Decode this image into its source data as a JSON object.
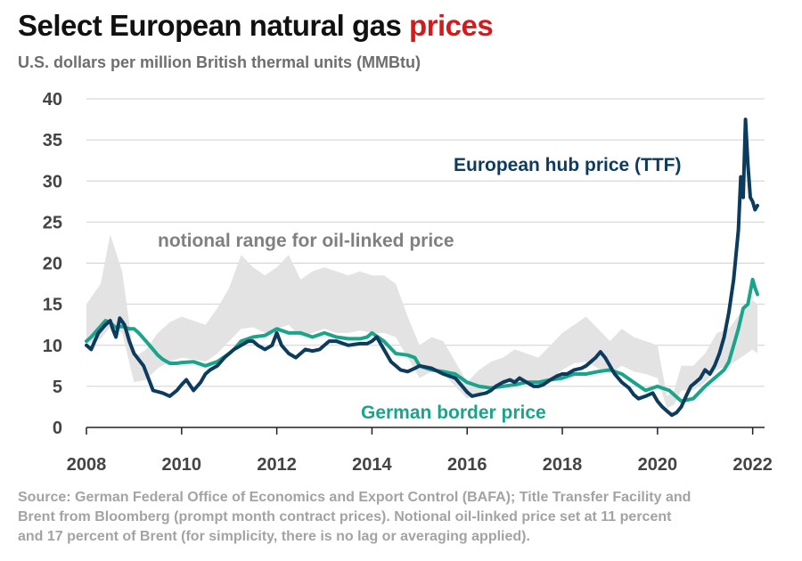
{
  "header": {
    "title_main": "Select European natural gas ",
    "title_accent": "prices",
    "subtitle": "U.S. dollars per million British thermal units (MMBtu)"
  },
  "source": {
    "lines": [
      "Source: German Federal Office of Economics and Export Control (BAFA); Title Transfer Facility and",
      "Brent from Bloomberg (prompt month contract prices). Notional oil-linked price set at 11 percent",
      "and 17 percent of Brent (for simplicity, there is no lag or averaging applied)."
    ]
  },
  "colors": {
    "ttf": "#0d3b5e",
    "german": "#1aa58a",
    "range": "#e3e3e3",
    "annotation_gray": "#808080",
    "title_accent": "#d7191c",
    "grid": "#d0d0d0",
    "axis_text": "#444444"
  },
  "chart_data": {
    "type": "line",
    "xlim": [
      2008,
      2022.25
    ],
    "ylim": [
      0,
      40
    ],
    "x_ticks": [
      2008,
      2010,
      2012,
      2014,
      2016,
      2018,
      2020,
      2022
    ],
    "x_tick_labels": [
      "2008",
      "2010",
      "2012",
      "2014",
      "2016",
      "2018",
      "2020",
      "2022"
    ],
    "y_ticks": [
      0,
      5,
      10,
      15,
      20,
      25,
      30,
      35,
      40
    ],
    "y_tick_labels": [
      "0",
      "5",
      "10",
      "15",
      "20",
      "25",
      "30",
      "35",
      "40"
    ],
    "grid": "horizontal",
    "annotations": {
      "ttf_label": "European hub price (TTF)",
      "german_label": "German border price",
      "range_label": "notional range for oil-linked price"
    },
    "band": {
      "name": "notional range for oil-linked price",
      "x": [
        2008.0,
        2008.3,
        2008.5,
        2008.75,
        2009.0,
        2009.25,
        2009.5,
        2009.75,
        2010.0,
        2010.25,
        2010.5,
        2010.75,
        2011.0,
        2011.25,
        2011.5,
        2011.75,
        2012.0,
        2012.25,
        2012.5,
        2012.75,
        2013.0,
        2013.25,
        2013.5,
        2013.75,
        2014.0,
        2014.25,
        2014.5,
        2014.75,
        2015.0,
        2015.25,
        2015.5,
        2015.75,
        2016.0,
        2016.25,
        2016.5,
        2016.75,
        2017.0,
        2017.25,
        2017.5,
        2017.75,
        2018.0,
        2018.25,
        2018.5,
        2018.75,
        2019.0,
        2019.25,
        2019.5,
        2019.75,
        2020.0,
        2020.2,
        2020.35,
        2020.5,
        2020.75,
        2021.0,
        2021.25,
        2021.5,
        2021.75,
        2022.0,
        2022.1
      ],
      "lower": [
        10,
        10.8,
        12.2,
        11.5,
        5.5,
        5.8,
        7.2,
        8.0,
        8.5,
        8.3,
        8.0,
        9.0,
        10.5,
        12.0,
        12.2,
        11.5,
        12.0,
        12.5,
        11.0,
        11.5,
        12.0,
        11.5,
        11.5,
        11.8,
        11.5,
        11.5,
        11.0,
        8.5,
        6.0,
        6.8,
        6.5,
        5.0,
        3.5,
        4.2,
        5.0,
        5.2,
        5.8,
        5.6,
        5.2,
        6.0,
        7.0,
        7.8,
        8.0,
        7.2,
        6.5,
        7.5,
        6.8,
        6.5,
        6.0,
        2.3,
        2.8,
        4.5,
        4.5,
        5.5,
        7.0,
        7.5,
        8.5,
        9.5,
        9.0
      ],
      "upper": [
        15.0,
        17.5,
        23.5,
        19.0,
        8.5,
        9.5,
        11.5,
        12.8,
        13.5,
        13.0,
        12.5,
        14.5,
        17.0,
        21.0,
        19.5,
        18.5,
        19.5,
        21.0,
        18.0,
        19.0,
        19.5,
        19.0,
        18.5,
        19.0,
        18.5,
        18.5,
        17.5,
        13.5,
        10.0,
        11.0,
        10.5,
        8.0,
        5.5,
        7.0,
        8.0,
        8.5,
        9.5,
        9.0,
        8.5,
        10.0,
        11.5,
        12.5,
        13.5,
        12.0,
        10.5,
        12.0,
        11.0,
        10.5,
        10.0,
        3.8,
        4.5,
        7.5,
        7.5,
        9.0,
        11.5,
        12.0,
        14.0,
        15.5,
        15.0
      ]
    },
    "series": [
      {
        "name": "European hub price (TTF)",
        "x": [
          2008.0,
          2008.1,
          2008.25,
          2008.4,
          2008.5,
          2008.55,
          2008.62,
          2008.7,
          2008.8,
          2008.9,
          2009.0,
          2009.2,
          2009.4,
          2009.6,
          2009.75,
          2009.9,
          2010.0,
          2010.1,
          2010.25,
          2010.4,
          2010.5,
          2010.6,
          2010.75,
          2010.9,
          2011.0,
          2011.1,
          2011.25,
          2011.4,
          2011.5,
          2011.6,
          2011.75,
          2011.9,
          2012.0,
          2012.1,
          2012.25,
          2012.4,
          2012.5,
          2012.6,
          2012.75,
          2012.9,
          2013.0,
          2013.1,
          2013.25,
          2013.5,
          2013.75,
          2013.9,
          2014.0,
          2014.1,
          2014.25,
          2014.4,
          2014.5,
          2014.6,
          2014.75,
          2014.9,
          2015.0,
          2015.25,
          2015.5,
          2015.75,
          2015.9,
          2016.0,
          2016.1,
          2016.25,
          2016.4,
          2016.5,
          2016.6,
          2016.75,
          2016.9,
          2017.0,
          2017.1,
          2017.25,
          2017.4,
          2017.5,
          2017.6,
          2017.75,
          2017.9,
          2018.0,
          2018.1,
          2018.25,
          2018.4,
          2018.5,
          2018.6,
          2018.7,
          2018.8,
          2018.9,
          2019.0,
          2019.1,
          2019.25,
          2019.4,
          2019.5,
          2019.6,
          2019.75,
          2019.9,
          2020.0,
          2020.1,
          2020.2,
          2020.3,
          2020.4,
          2020.5,
          2020.6,
          2020.7,
          2020.8,
          2020.9,
          2021.0,
          2021.1,
          2021.2,
          2021.3,
          2021.4,
          2021.5,
          2021.6,
          2021.7,
          2021.75,
          2021.8,
          2021.85,
          2021.9,
          2021.95,
          2022.0,
          2022.05,
          2022.1
        ],
        "y": [
          10.0,
          9.5,
          11.5,
          12.5,
          13.0,
          12.0,
          11.0,
          13.3,
          12.5,
          10.5,
          9.0,
          7.5,
          4.5,
          4.2,
          3.8,
          4.5,
          5.2,
          5.8,
          4.5,
          5.5,
          6.5,
          7.0,
          7.5,
          8.5,
          9.0,
          9.5,
          10.0,
          10.5,
          10.5,
          10.0,
          9.5,
          10.0,
          11.5,
          10.0,
          9.0,
          8.5,
          9.0,
          9.5,
          9.3,
          9.5,
          10.0,
          10.5,
          10.5,
          10.0,
          10.2,
          10.2,
          10.5,
          11.0,
          9.5,
          8.0,
          7.5,
          7.0,
          6.8,
          7.2,
          7.5,
          7.2,
          6.5,
          6.0,
          5.0,
          4.3,
          3.8,
          4.0,
          4.2,
          4.5,
          5.0,
          5.5,
          5.8,
          5.5,
          6.0,
          5.5,
          5.0,
          5.0,
          5.2,
          5.8,
          6.3,
          6.5,
          6.5,
          7.0,
          7.2,
          7.5,
          8.0,
          8.5,
          9.2,
          8.5,
          7.5,
          6.5,
          5.5,
          4.8,
          4.0,
          3.5,
          3.8,
          4.2,
          3.2,
          2.5,
          2.0,
          1.5,
          1.8,
          2.5,
          3.8,
          5.0,
          5.5,
          6.0,
          7.0,
          6.5,
          7.5,
          9.0,
          11.0,
          14.0,
          18.0,
          24.0,
          30.5,
          28.0,
          37.5,
          32.0,
          28.0,
          27.5,
          26.5,
          27.0
        ]
      },
      {
        "name": "German border price",
        "x": [
          2008.0,
          2008.1,
          2008.25,
          2008.4,
          2008.5,
          2008.6,
          2008.75,
          2008.9,
          2009.0,
          2009.1,
          2009.25,
          2009.4,
          2009.5,
          2009.6,
          2009.75,
          2009.9,
          2010.0,
          2010.25,
          2010.5,
          2010.75,
          2011.0,
          2011.1,
          2011.25,
          2011.5,
          2011.75,
          2012.0,
          2012.25,
          2012.5,
          2012.75,
          2013.0,
          2013.25,
          2013.5,
          2013.75,
          2013.9,
          2014.0,
          2014.25,
          2014.5,
          2014.75,
          2014.9,
          2015.0,
          2015.25,
          2015.5,
          2015.75,
          2016.0,
          2016.25,
          2016.5,
          2016.75,
          2017.0,
          2017.25,
          2017.5,
          2017.75,
          2018.0,
          2018.25,
          2018.5,
          2018.75,
          2019.0,
          2019.25,
          2019.5,
          2019.75,
          2020.0,
          2020.25,
          2020.5,
          2020.75,
          2021.0,
          2021.2,
          2021.4,
          2021.5,
          2021.6,
          2021.7,
          2021.8,
          2021.9,
          2021.95,
          2022.0,
          2022.05,
          2022.1
        ],
        "y": [
          10.5,
          11.0,
          12.0,
          13.0,
          12.8,
          12.2,
          12.3,
          12.0,
          12.0,
          11.5,
          10.5,
          9.5,
          8.8,
          8.3,
          7.8,
          7.8,
          7.9,
          8.0,
          7.5,
          8.0,
          9.0,
          9.5,
          10.5,
          11.0,
          11.2,
          12.0,
          11.5,
          11.5,
          11.0,
          11.5,
          11.0,
          10.8,
          10.8,
          11.0,
          11.5,
          10.5,
          9.0,
          8.8,
          8.5,
          7.5,
          7.0,
          6.8,
          6.5,
          5.5,
          5.0,
          4.8,
          5.0,
          5.2,
          5.5,
          5.5,
          5.8,
          6.0,
          6.5,
          6.5,
          6.8,
          7.0,
          6.5,
          5.5,
          4.5,
          5.0,
          4.5,
          3.2,
          3.5,
          5.0,
          6.0,
          7.0,
          8.0,
          10.0,
          12.0,
          14.5,
          15.0,
          16.5,
          18.0,
          17.0,
          16.2
        ]
      }
    ]
  }
}
